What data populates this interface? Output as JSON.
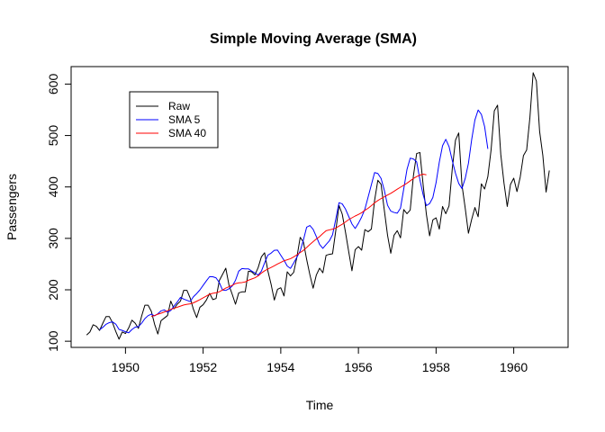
{
  "chart_data": {
    "type": "line",
    "title": "Simple Moving Average (SMA)",
    "xlabel": "Time",
    "ylabel": "Passengers",
    "xlim": [
      1948.6,
      1961.4
    ],
    "ylim": [
      88,
      634
    ],
    "xticks": [
      1950,
      1952,
      1954,
      1956,
      1958,
      1960
    ],
    "yticks": [
      100,
      200,
      300,
      400,
      500,
      600
    ],
    "grid": false,
    "legend_position": "top-left",
    "series": [
      {
        "name": "Raw",
        "color": "#000000",
        "x_start": 1949.0,
        "x_step": 0.0833333,
        "values": [
          112,
          118,
          132,
          129,
          121,
          135,
          148,
          148,
          136,
          119,
          104,
          118,
          115,
          126,
          141,
          135,
          125,
          149,
          170,
          170,
          158,
          133,
          114,
          140,
          145,
          150,
          178,
          163,
          172,
          178,
          199,
          199,
          184,
          162,
          146,
          166,
          171,
          180,
          193,
          181,
          183,
          218,
          230,
          242,
          209,
          191,
          172,
          194,
          196,
          196,
          236,
          235,
          229,
          243,
          264,
          272,
          237,
          211,
          180,
          201,
          204,
          188,
          235,
          227,
          234,
          264,
          302,
          293,
          259,
          229,
          203,
          229,
          242,
          233,
          267,
          269,
          270,
          315,
          364,
          347,
          312,
          274,
          237,
          278,
          284,
          277,
          317,
          313,
          318,
          374,
          413,
          405,
          355,
          306,
          271,
          306,
          315,
          301,
          356,
          348,
          355,
          422,
          465,
          467,
          404,
          347,
          305,
          336,
          340,
          318,
          362,
          348,
          363,
          435,
          491,
          505,
          404,
          359,
          310,
          337,
          360,
          342,
          406,
          396,
          420,
          472,
          548,
          559,
          463,
          407,
          362,
          405,
          417,
          391,
          419,
          461,
          472,
          535,
          622,
          606,
          508,
          461,
          390,
          432
        ]
      },
      {
        "name": "SMA 5",
        "color": "#0000ff",
        "x_start": 1949.333333,
        "x_step": 0.0833333,
        "values": [
          122.4,
          127.0,
          133.0,
          136.2,
          137.6,
          133.2,
          123.0,
          121.0,
          118.4,
          116.4,
          122.8,
          127.4,
          128.4,
          135.2,
          144.0,
          149.8,
          152.6,
          149.4,
          153.4,
          159.0,
          161.0,
          156.4,
          159.8,
          168.4,
          176.2,
          185.2,
          182.0,
          179.6,
          177.2,
          186.4,
          192.6,
          199.8,
          208.6,
          217.4,
          225.6,
          225.4,
          223.2,
          214.0,
          199.6,
          198.8,
          202.0,
          207.4,
          218.4,
          236.2,
          241.4,
          240.8,
          240.8,
          236.4,
          233.0,
          228.6,
          236.2,
          252.4,
          267.4,
          271.2,
          276.8,
          277.2,
          267.2,
          257.6,
          246.2,
          241.6,
          252.2,
          263.6,
          275.4,
          297.0,
          321.8,
          325.0,
          317.6,
          303.4,
          288.2,
          280.6,
          288.0,
          295.0,
          307.0,
          337.4,
          369.4,
          367.0,
          357.0,
          342.6,
          328.0,
          319.2,
          329.4,
          341.6,
          356.8,
          380.4,
          404.4,
          428.0,
          426.2,
          416.6,
          393.6,
          364.4,
          353.0,
          350.4,
          349.0,
          358.8,
          396.0,
          433.8,
          456.0,
          454.4,
          448.8,
          413.8,
          384.8,
          363.6,
          367.6,
          379.4,
          408.4,
          448.4,
          480.2,
          492.6,
          478.6,
          451.4,
          426.6,
          406.8,
          397.0,
          416.4,
          446.0,
          492.0,
          530.2,
          549.6,
          541.0,
          517.4,
          474.0
        ]
      },
      {
        "name": "SMA 40",
        "color": "#ff0000",
        "x_start": 1950.666667,
        "x_step": 0.0833333,
        "values": [
          148.2,
          150.0,
          152.5,
          154.5,
          156.9,
          159.4,
          162.0,
          164.0,
          166.1,
          168.3,
          170.5,
          171.8,
          172.6,
          174.6,
          177.7,
          180.9,
          184.4,
          187.9,
          191.5,
          193.2,
          194.3,
          196.2,
          199.7,
          203.4,
          206.0,
          208.6,
          212.1,
          213.5,
          214.1,
          215.3,
          218.6,
          221.0,
          223.3,
          227.0,
          232.5,
          236.9,
          240.3,
          243.5,
          246.8,
          250.2,
          253.3,
          256.5,
          258.4,
          260.5,
          264.0,
          268.0,
          272.4,
          276.7,
          282.2,
          288.2,
          293.6,
          298.9,
          303.4,
          309.3,
          314.9,
          316.5,
          317.9,
          320.0,
          323.9,
          327.5,
          331.9,
          336.5,
          340.0,
          343.5,
          346.5,
          350.0,
          354.5,
          358.6,
          363.7,
          369.1,
          373.6,
          377.4,
          380.8,
          384.2,
          387.6,
          391.5,
          395.6,
          399.5,
          403.4,
          407.3,
          411.9,
          416.5,
          420.2,
          422.9,
          424.8,
          423.5
        ]
      }
    ]
  }
}
